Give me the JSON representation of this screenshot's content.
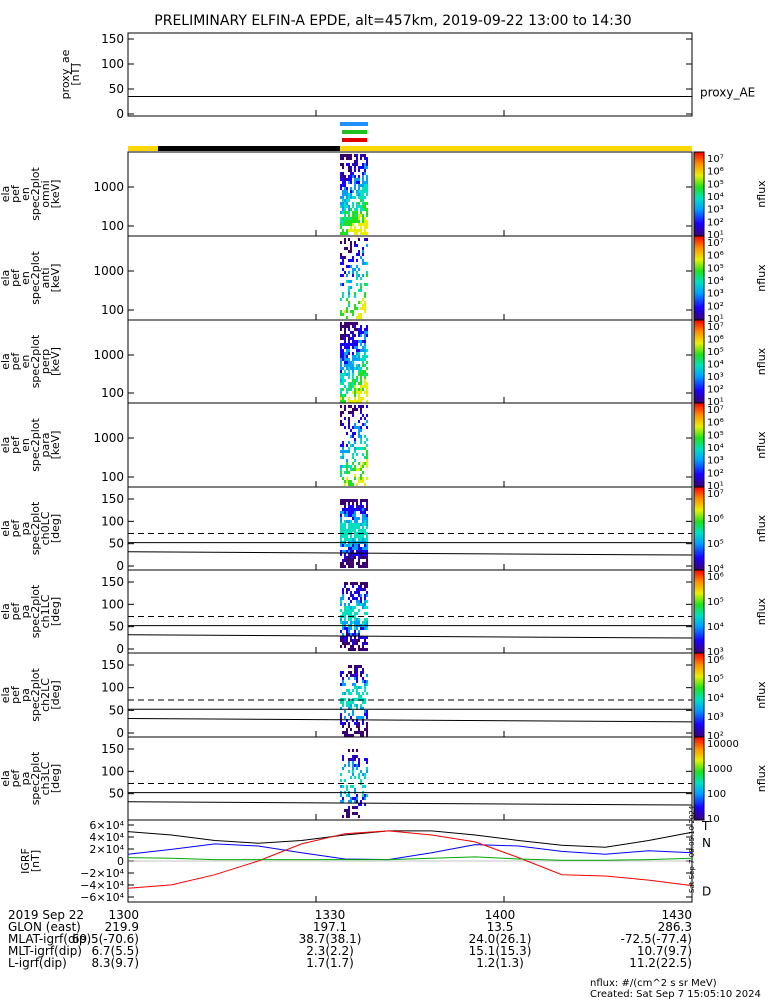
{
  "title": "PRELIMINARY ELFIN-A EPDE, alt=457km, 2019-09-22 13:00 to 14:30",
  "chart_data": {
    "type": "heatmap",
    "time_range": [
      "13:00",
      "14:30"
    ],
    "panels": [
      {
        "ylabel": [
          "proxy_ae",
          "[nT]"
        ],
        "yticks": [
          "150",
          "100",
          "50",
          "0"
        ],
        "ylim": [
          0,
          160
        ],
        "kind": "line",
        "series_label": "proxy_AE",
        "ae_level": 33
      },
      {
        "ylabel": [
          "ela",
          "pef",
          "en",
          "spec2plot",
          "omni",
          "[keV]"
        ],
        "yticks": [
          "1000",
          "100"
        ],
        "kind": "energy",
        "colorbar": {
          "label": "nflux",
          "ticks": [
            "10⁷",
            "10⁶",
            "10⁵",
            "10⁴",
            "10³",
            "10²",
            "10¹"
          ]
        }
      },
      {
        "ylabel": [
          "ela",
          "pef",
          "en",
          "spec2plot",
          "anti",
          "[keV]"
        ],
        "yticks": [
          "1000",
          "100"
        ],
        "kind": "energy",
        "colorbar": {
          "label": "nflux",
          "ticks": [
            "10⁷",
            "10⁶",
            "10⁵",
            "10⁴",
            "10³",
            "10²",
            "10¹"
          ]
        }
      },
      {
        "ylabel": [
          "ela",
          "pef",
          "en",
          "spec2plot",
          "perp",
          "[keV]"
        ],
        "yticks": [
          "1000",
          "100"
        ],
        "kind": "energy",
        "colorbar": {
          "label": "nflux",
          "ticks": [
            "10⁷",
            "10⁶",
            "10⁵",
            "10⁴",
            "10³",
            "10²",
            "10¹"
          ]
        }
      },
      {
        "ylabel": [
          "ela",
          "pef",
          "en",
          "spec2plot",
          "para",
          "[keV]"
        ],
        "yticks": [
          "1000",
          "100"
        ],
        "kind": "energy",
        "colorbar": {
          "label": "nflux",
          "ticks": [
            "10⁷",
            "10⁶",
            "10⁵",
            "10⁴",
            "10³",
            "10²",
            "10¹"
          ]
        }
      },
      {
        "ylabel": [
          "ela",
          "pef",
          "pa",
          "spec2plot",
          "ch0LC",
          "[deg]"
        ],
        "yticks": [
          "150",
          "100",
          "50",
          "0"
        ],
        "kind": "pa",
        "colorbar": {
          "label": "nflux",
          "ticks": [
            "10⁷",
            "10⁶",
            "10⁵",
            "10⁴"
          ]
        }
      },
      {
        "ylabel": [
          "ela",
          "pef",
          "pa",
          "spec2plot",
          "ch1LC",
          "[deg]"
        ],
        "yticks": [
          "150",
          "100",
          "50",
          "0"
        ],
        "kind": "pa",
        "colorbar": {
          "label": "nflux",
          "ticks": [
            "10⁶",
            "10⁵",
            "10⁴",
            "10³"
          ]
        }
      },
      {
        "ylabel": [
          "ela",
          "pef",
          "pa",
          "spec2plot",
          "ch2LC",
          "[deg]"
        ],
        "yticks": [
          "150",
          "100",
          "50",
          "0"
        ],
        "kind": "pa",
        "colorbar": {
          "label": "nflux",
          "ticks": [
            "10⁶",
            "10⁵",
            "10⁴",
            "10³",
            "10²"
          ]
        }
      },
      {
        "ylabel": [
          "ela",
          "pef",
          "pa",
          "spec2plot",
          "ch3LC",
          "[deg]"
        ],
        "yticks": [
          "150",
          "100",
          "50"
        ],
        "kind": "pa",
        "colorbar": {
          "label": "nflux",
          "ticks": [
            "10000",
            "1000",
            "100",
            "10"
          ]
        }
      },
      {
        "ylabel": [
          "IGRF",
          "[nT]"
        ],
        "yticks": [
          "6×10⁴",
          "4×10⁴",
          "2×10⁴",
          "0",
          "−2×10⁴",
          "−4×10⁴",
          "−6×10⁴"
        ],
        "kind": "igrf",
        "ylim": [
          -60000,
          60000
        ],
        "series": [
          {
            "name": "T",
            "color": "#000000",
            "values": [
              43000,
              38000,
              30000,
              26000,
              30000,
              38000,
              44000,
              44000,
              38000,
              30000,
              23000,
              20000,
              30000,
              42000
            ]
          },
          {
            "name": "N",
            "color": "#0000ff",
            "values": [
              10000,
              17000,
              25000,
              22000,
              12000,
              3000,
              2000,
              12000,
              24000,
              22000,
              14000,
              10000,
              15000,
              12000
            ]
          },
          {
            "name": "D",
            "color": "#ff0000",
            "values": [
              -40000,
              -35000,
              -20000,
              0,
              25000,
              40000,
              44000,
              38000,
              28000,
              5000,
              -20000,
              -22000,
              -28000,
              -36000
            ]
          },
          {
            "name": "",
            "color": "#00aa00",
            "values": [
              5000,
              4000,
              2000,
              2000,
              2000,
              2000,
              2000,
              4000,
              6000,
              3000,
              1000,
              1000,
              2000,
              4000
            ]
          }
        ]
      }
    ],
    "x_ticks": [
      "1300",
      "1330",
      "1400",
      "1430"
    ],
    "ephemeris": [
      {
        "label": "2019 Sep 22",
        "values": [
          "1300",
          "1330",
          "1400",
          "1430"
        ]
      },
      {
        "label": "GLON (east)",
        "values": [
          "219.9",
          "197.1",
          "13.5",
          "286.3"
        ]
      },
      {
        "label": "MLAT-igrf(dip)",
        "values": [
          "69.5(-70.6)",
          "38.7(38.1)",
          "24.0(26.1)",
          "-72.5(-77.4)"
        ]
      },
      {
        "label": "MLT-igrf(dip)",
        "values": [
          "6.7(5.5)",
          "2.3(2.2)",
          "15.1(15.3)",
          "10.7(9.7)"
        ]
      },
      {
        "label": "L-igrf(dip)",
        "values": [
          "8.3(9.7)",
          "1.7(1.7)",
          "1.2(1.3)",
          "11.2(22.5)"
        ]
      }
    ],
    "side_stamp": "Sat Sep  7 08:05:10 2024",
    "footer": [
      "nflux: #/(cm^2 s sr MeV)",
      "Created: Sat Sep  7 15:05:10 2024"
    ]
  }
}
